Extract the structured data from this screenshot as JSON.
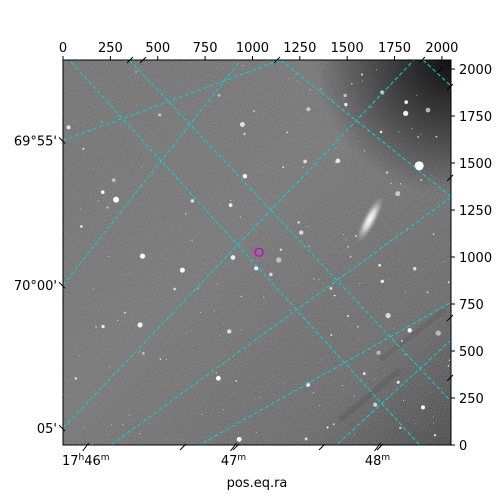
{
  "chart_data": {
    "type": "scatter",
    "image_kind": "astronomical-image",
    "xlabel": "pos.eq.ra",
    "ylabel": "",
    "pixel_axes": {
      "x_range": [
        0,
        2048
      ],
      "y_range": [
        0,
        2048
      ],
      "x_ticks": [
        0,
        250,
        500,
        750,
        1000,
        1250,
        1500,
        1750,
        2000
      ],
      "y_ticks": [
        0,
        250,
        500,
        750,
        1000,
        1250,
        1500,
        1750,
        2000
      ]
    },
    "ra_tick_labels": [
      {
        "label": "17h46m",
        "x": 120
      },
      {
        "label": "47m",
        "x": 900
      },
      {
        "label": "48m",
        "x": 1660
      }
    ],
    "dec_tick_labels": [
      {
        "label": "69°55'",
        "y": 1620
      },
      {
        "label": "70°00'",
        "y": 850
      },
      {
        "label": "05'",
        "y": 90
      }
    ],
    "marker": {
      "x": 1035,
      "y": 1025,
      "shape": "circle",
      "color": "#cc00cc"
    },
    "galaxy": {
      "x": 1620,
      "y": 1200
    },
    "grid_color": "#00d8d8",
    "grid": true
  }
}
